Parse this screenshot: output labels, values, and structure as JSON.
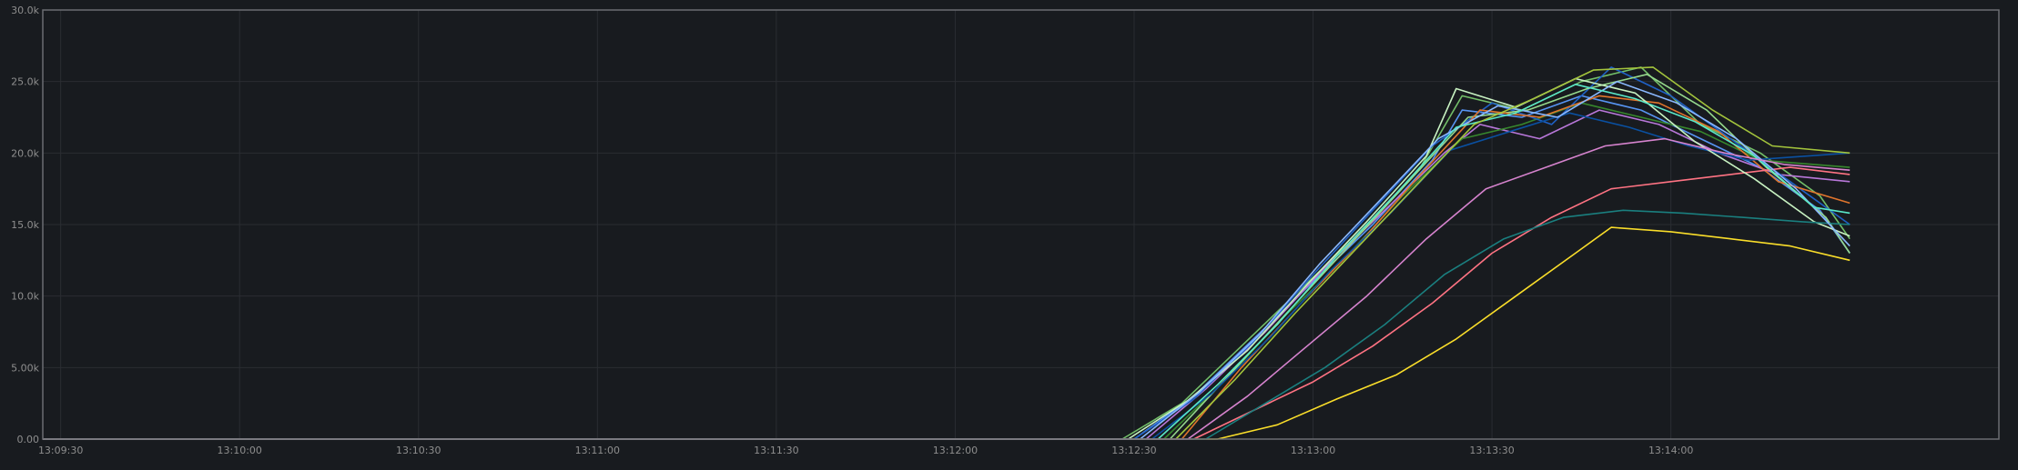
{
  "chart_data": {
    "type": "line",
    "title": "",
    "xlabel": "",
    "ylabel": "",
    "xlim": [
      "13:09:27",
      "13:14:55"
    ],
    "ylim": [
      0,
      30000
    ],
    "x_ticks": [
      "13:09:30",
      "13:10:00",
      "13:10:30",
      "13:11:00",
      "13:11:30",
      "13:12:00",
      "13:12:30",
      "13:13:00",
      "13:13:30",
      "13:14:00"
    ],
    "y_ticks": [
      "0.00",
      "5.00k",
      "10.0k",
      "15.0k",
      "20.0k",
      "25.0k",
      "30.0k"
    ],
    "y_tick_values": [
      0,
      5000,
      10000,
      15000,
      20000,
      25000,
      30000
    ],
    "grid": true,
    "legend": "none",
    "series": [
      {
        "color": "#5794f2",
        "points": [
          [
            "13:09:27",
            0
          ],
          [
            "13:12:30",
            0
          ],
          [
            "13:12:40",
            3000
          ],
          [
            "13:12:50",
            7000
          ],
          [
            "13:13:00",
            11000
          ],
          [
            "13:13:10",
            15000
          ],
          [
            "13:13:20",
            19500
          ],
          [
            "13:13:25",
            23000
          ],
          [
            "13:13:35",
            22500
          ],
          [
            "13:13:45",
            24000
          ],
          [
            "13:13:55",
            23000
          ],
          [
            "13:14:05",
            21000
          ],
          [
            "13:14:15",
            19000
          ],
          [
            "13:14:25",
            16000
          ],
          [
            "13:14:30",
            13000
          ]
        ]
      },
      {
        "color": "#73bf69",
        "points": [
          [
            "13:09:27",
            0
          ],
          [
            "13:12:28",
            0
          ],
          [
            "13:12:38",
            2500
          ],
          [
            "13:12:48",
            6500
          ],
          [
            "13:12:58",
            10500
          ],
          [
            "13:13:08",
            14500
          ],
          [
            "13:13:18",
            19000
          ],
          [
            "13:13:25",
            24000
          ],
          [
            "13:13:35",
            23000
          ],
          [
            "13:13:45",
            25000
          ],
          [
            "13:13:55",
            26000
          ],
          [
            "13:14:05",
            22000
          ],
          [
            "13:14:15",
            20000
          ],
          [
            "13:14:25",
            17000
          ],
          [
            "13:14:30",
            14000
          ]
        ]
      },
      {
        "color": "#b877d9",
        "points": [
          [
            "13:09:27",
            0
          ],
          [
            "13:12:32",
            0
          ],
          [
            "13:12:42",
            3500
          ],
          [
            "13:12:52",
            7500
          ],
          [
            "13:13:02",
            12000
          ],
          [
            "13:13:12",
            16000
          ],
          [
            "13:13:22",
            20000
          ],
          [
            "13:13:28",
            22000
          ],
          [
            "13:13:38",
            21000
          ],
          [
            "13:13:48",
            23000
          ],
          [
            "13:13:58",
            22000
          ],
          [
            "13:14:08",
            20000
          ],
          [
            "13:14:18",
            18500
          ],
          [
            "13:14:30",
            18000
          ]
        ]
      },
      {
        "color": "#37872d",
        "points": [
          [
            "13:09:27",
            0
          ],
          [
            "13:12:35",
            0
          ],
          [
            "13:12:45",
            4000
          ],
          [
            "13:12:55",
            8500
          ],
          [
            "13:13:05",
            12500
          ],
          [
            "13:13:15",
            17000
          ],
          [
            "13:13:25",
            21000
          ],
          [
            "13:13:35",
            22000
          ],
          [
            "13:13:45",
            23500
          ],
          [
            "13:13:55",
            22500
          ],
          [
            "13:14:05",
            21500
          ],
          [
            "13:14:15",
            19500
          ],
          [
            "13:14:30",
            19000
          ]
        ]
      },
      {
        "color": "#1f60c4",
        "points": [
          [
            "13:09:27",
            0
          ],
          [
            "13:12:30",
            0
          ],
          [
            "13:12:40",
            2800
          ],
          [
            "13:12:50",
            6800
          ],
          [
            "13:13:00",
            11500
          ],
          [
            "13:13:10",
            16000
          ],
          [
            "13:13:20",
            20500
          ],
          [
            "13:13:30",
            23500
          ],
          [
            "13:13:40",
            22000
          ],
          [
            "13:13:50",
            26000
          ],
          [
            "13:14:00",
            24000
          ],
          [
            "13:14:10",
            21000
          ],
          [
            "13:14:20",
            18000
          ],
          [
            "13:14:30",
            15000
          ]
        ]
      },
      {
        "color": "#96d98d",
        "points": [
          [
            "13:09:27",
            0
          ],
          [
            "13:12:36",
            0
          ],
          [
            "13:12:46",
            4500
          ],
          [
            "13:12:56",
            9000
          ],
          [
            "13:13:06",
            13500
          ],
          [
            "13:13:16",
            18000
          ],
          [
            "13:13:26",
            22500
          ],
          [
            "13:13:36",
            23000
          ],
          [
            "13:13:46",
            24500
          ],
          [
            "13:13:56",
            25500
          ],
          [
            "13:14:06",
            23000
          ],
          [
            "13:14:16",
            19000
          ],
          [
            "13:14:26",
            15500
          ],
          [
            "13:14:30",
            13000
          ]
        ]
      },
      {
        "color": "#fade2a",
        "points": [
          [
            "13:09:27",
            0
          ],
          [
            "13:12:44",
            0
          ],
          [
            "13:12:54",
            1000
          ],
          [
            "13:13:04",
            2800
          ],
          [
            "13:13:14",
            4500
          ],
          [
            "13:13:24",
            7000
          ],
          [
            "13:13:34",
            10000
          ],
          [
            "13:13:44",
            13000
          ],
          [
            "13:13:50",
            14800
          ],
          [
            "13:14:00",
            14500
          ],
          [
            "13:14:10",
            14000
          ],
          [
            "13:14:20",
            13500
          ],
          [
            "13:14:30",
            12500
          ]
        ]
      },
      {
        "color": "#e0752d",
        "points": [
          [
            "13:09:27",
            0
          ],
          [
            "13:12:38",
            0
          ],
          [
            "13:12:48",
            5000
          ],
          [
            "13:12:58",
            9500
          ],
          [
            "13:13:08",
            13800
          ],
          [
            "13:13:18",
            18500
          ],
          [
            "13:13:28",
            23000
          ],
          [
            "13:13:38",
            22500
          ],
          [
            "13:13:48",
            24000
          ],
          [
            "13:13:58",
            23500
          ],
          [
            "13:14:08",
            21500
          ],
          [
            "13:14:18",
            18000
          ],
          [
            "13:14:30",
            16500
          ]
        ]
      },
      {
        "color": "#ff7383",
        "points": [
          [
            "13:09:27",
            0
          ],
          [
            "13:12:40",
            0
          ],
          [
            "13:12:50",
            2000
          ],
          [
            "13:13:00",
            4000
          ],
          [
            "13:13:10",
            6500
          ],
          [
            "13:13:20",
            9500
          ],
          [
            "13:13:30",
            13000
          ],
          [
            "13:13:40",
            15500
          ],
          [
            "13:13:50",
            17500
          ],
          [
            "13:14:00",
            18000
          ],
          [
            "13:14:10",
            18500
          ],
          [
            "13:14:20",
            19000
          ],
          [
            "13:14:30",
            18500
          ]
        ]
      },
      {
        "color": "#0a50a1",
        "points": [
          [
            "13:09:27",
            0
          ],
          [
            "13:12:33",
            0
          ],
          [
            "13:12:43",
            3200
          ],
          [
            "13:12:53",
            7200
          ],
          [
            "13:13:03",
            11800
          ],
          [
            "13:13:13",
            15800
          ],
          [
            "13:13:23",
            20200
          ],
          [
            "13:13:33",
            21500
          ],
          [
            "13:13:43",
            22800
          ],
          [
            "13:13:53",
            21800
          ],
          [
            "13:14:03",
            20500
          ],
          [
            "13:14:13",
            19500
          ],
          [
            "13:14:30",
            20000
          ]
        ]
      },
      {
        "color": "#c8f2c2",
        "points": [
          [
            "13:09:27",
            0
          ],
          [
            "13:12:29",
            0
          ],
          [
            "13:12:39",
            2700
          ],
          [
            "13:12:49",
            6200
          ],
          [
            "13:12:59",
            10800
          ],
          [
            "13:13:09",
            15200
          ],
          [
            "13:13:19",
            19800
          ],
          [
            "13:13:24",
            24500
          ],
          [
            "13:13:34",
            23200
          ],
          [
            "13:13:44",
            25200
          ],
          [
            "13:13:54",
            24200
          ],
          [
            "13:14:04",
            20800
          ],
          [
            "13:14:14",
            18200
          ],
          [
            "13:14:24",
            15200
          ],
          [
            "13:14:30",
            14200
          ]
        ]
      },
      {
        "color": "#1a7f7f",
        "points": [
          [
            "13:09:27",
            0
          ],
          [
            "13:12:42",
            0
          ],
          [
            "13:12:52",
            2500
          ],
          [
            "13:13:02",
            5000
          ],
          [
            "13:13:12",
            8000
          ],
          [
            "13:13:22",
            11500
          ],
          [
            "13:13:32",
            14000
          ],
          [
            "13:13:42",
            15500
          ],
          [
            "13:13:52",
            16000
          ],
          [
            "13:14:02",
            15800
          ],
          [
            "13:14:12",
            15500
          ],
          [
            "13:14:22",
            15200
          ],
          [
            "13:14:30",
            15000
          ]
        ]
      },
      {
        "color": "#8ab8ff",
        "points": [
          [
            "13:09:27",
            0
          ],
          [
            "13:12:31",
            0
          ],
          [
            "13:12:41",
            3300
          ],
          [
            "13:12:51",
            7300
          ],
          [
            "13:13:01",
            12200
          ],
          [
            "13:13:11",
            16600
          ],
          [
            "13:13:21",
            21000
          ],
          [
            "13:13:31",
            23300
          ],
          [
            "13:13:41",
            22500
          ],
          [
            "13:13:51",
            25000
          ],
          [
            "13:14:01",
            23500
          ],
          [
            "13:14:11",
            21000
          ],
          [
            "13:14:21",
            17500
          ],
          [
            "13:14:30",
            13500
          ]
        ]
      },
      {
        "color": "#5ae8c8",
        "points": [
          [
            "13:09:27",
            0
          ],
          [
            "13:12:34",
            0
          ],
          [
            "13:12:44",
            3800
          ],
          [
            "13:12:54",
            8000
          ],
          [
            "13:13:04",
            12800
          ],
          [
            "13:13:14",
            17200
          ],
          [
            "13:13:24",
            21800
          ],
          [
            "13:13:34",
            22800
          ],
          [
            "13:13:44",
            24800
          ],
          [
            "13:13:54",
            23800
          ],
          [
            "13:14:04",
            22200
          ],
          [
            "13:14:14",
            19800
          ],
          [
            "13:14:24",
            16200
          ],
          [
            "13:14:30",
            15800
          ]
        ]
      },
      {
        "color": "#a3c43c",
        "points": [
          [
            "13:09:27",
            0
          ],
          [
            "13:12:37",
            0
          ],
          [
            "13:12:47",
            4200
          ],
          [
            "13:12:57",
            8800
          ],
          [
            "13:13:07",
            13200
          ],
          [
            "13:13:17",
            17600
          ],
          [
            "13:13:27",
            22000
          ],
          [
            "13:13:37",
            23800
          ],
          [
            "13:13:47",
            25800
          ],
          [
            "13:13:57",
            26000
          ],
          [
            "13:14:07",
            23000
          ],
          [
            "13:14:17",
            20500
          ],
          [
            "13:14:30",
            20000
          ]
        ]
      },
      {
        "color": "#d683ce",
        "points": [
          [
            "13:09:27",
            0
          ],
          [
            "13:12:39",
            0
          ],
          [
            "13:12:49",
            3000
          ],
          [
            "13:12:59",
            6500
          ],
          [
            "13:13:09",
            10000
          ],
          [
            "13:13:19",
            14000
          ],
          [
            "13:13:29",
            17500
          ],
          [
            "13:13:39",
            19000
          ],
          [
            "13:13:49",
            20500
          ],
          [
            "13:13:59",
            21000
          ],
          [
            "13:14:09",
            20000
          ],
          [
            "13:14:19",
            19200
          ],
          [
            "13:14:30",
            18800
          ]
        ]
      }
    ]
  }
}
